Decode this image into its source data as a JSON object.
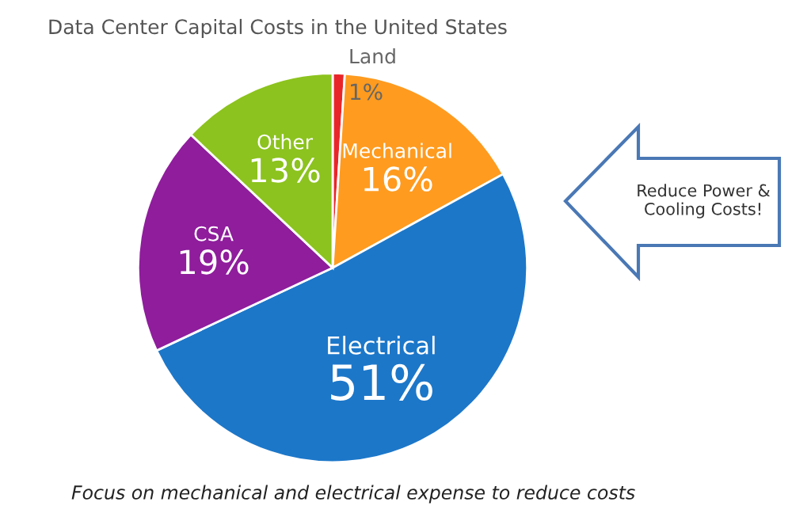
{
  "chart_data": {
    "type": "pie",
    "title": "Data Center Capital Costs in the United States",
    "categories": [
      "Land",
      "Mechanical",
      "Electrical",
      "CSA",
      "Other"
    ],
    "values": [
      1,
      16,
      51,
      19,
      13
    ],
    "colors": [
      "#e8262a",
      "#ff9b1f",
      "#1c77c9",
      "#8f1d9c",
      "#8cc31e"
    ],
    "value_labels": [
      "1%",
      "16%",
      "51%",
      "19%",
      "13%"
    ],
    "annotations": [
      "Reduce Power & Cooling Costs!",
      "Focus on mechanical and electrical expense to reduce costs"
    ]
  }
}
